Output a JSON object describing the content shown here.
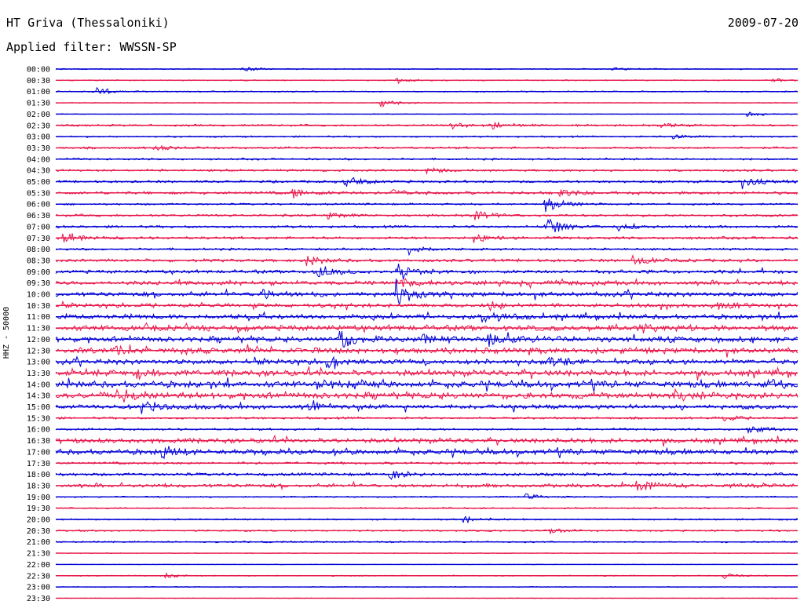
{
  "header": {
    "station": "HT Griva (Thessaloniki)",
    "date": "2009-07-20",
    "filter": "Applied filter: WWSSN-SP",
    "channel": "HHZ - 50000"
  },
  "colors": {
    "trace_a": "#0000d6",
    "trace_b": "#e8174b",
    "background": "#ffffff",
    "text": "#000000"
  },
  "chart_data": {
    "type": "line",
    "title": "HT Griva (Thessaloniki)",
    "subtitle": "Applied filter: WWSSN-SP",
    "date": "2009-07-20",
    "ylabel": "HHZ - 50000",
    "xlabel": "",
    "x_unit": "minutes within each 30-minute row",
    "xlim": [
      0,
      30
    ],
    "grid": false,
    "legend": "none",
    "row_color_cycle": [
      "#0000d6",
      "#e8174b"
    ],
    "rows": [
      {
        "time": "00:00",
        "noise": 0.8,
        "events": [
          {
            "t": 7.5,
            "a": 5
          },
          {
            "t": 22.5,
            "a": 2
          }
        ]
      },
      {
        "time": "00:30",
        "noise": 0.8,
        "events": [
          {
            "t": 13.8,
            "a": 4
          },
          {
            "t": 29.0,
            "a": 3
          }
        ]
      },
      {
        "time": "01:00",
        "noise": 1.0,
        "events": [
          {
            "t": 1.6,
            "a": 8
          }
        ]
      },
      {
        "time": "01:30",
        "noise": 0.6,
        "events": [
          {
            "t": 13.1,
            "a": 7
          }
        ]
      },
      {
        "time": "02:00",
        "noise": 0.5,
        "events": [
          {
            "t": 28.0,
            "a": 4
          }
        ]
      },
      {
        "time": "02:30",
        "noise": 1.5,
        "events": [
          {
            "t": 16.0,
            "a": 5
          },
          {
            "t": 17.7,
            "a": 6
          },
          {
            "t": 24.5,
            "a": 4
          }
        ]
      },
      {
        "time": "03:00",
        "noise": 1.2,
        "events": [
          {
            "t": 25.0,
            "a": 3
          }
        ]
      },
      {
        "time": "03:30",
        "noise": 1.6,
        "events": [
          {
            "t": 4.0,
            "a": 3
          }
        ]
      },
      {
        "time": "04:00",
        "noise": 1.4,
        "events": []
      },
      {
        "time": "04:30",
        "noise": 1.6,
        "events": [
          {
            "t": 15.0,
            "a": 5
          }
        ]
      },
      {
        "time": "05:00",
        "noise": 1.8,
        "events": [
          {
            "t": 11.7,
            "a": 12
          },
          {
            "t": 27.8,
            "a": 9
          }
        ]
      },
      {
        "time": "05:30",
        "noise": 2.2,
        "events": [
          {
            "t": 9.6,
            "a": 8
          },
          {
            "t": 13.6,
            "a": 8
          },
          {
            "t": 20.4,
            "a": 7
          }
        ]
      },
      {
        "time": "06:00",
        "noise": 1.4,
        "events": [
          {
            "t": 19.8,
            "a": 14
          }
        ]
      },
      {
        "time": "06:30",
        "noise": 1.8,
        "events": [
          {
            "t": 11.0,
            "a": 5
          },
          {
            "t": 17.0,
            "a": 10
          }
        ]
      },
      {
        "time": "07:00",
        "noise": 1.8,
        "events": [
          {
            "t": 19.8,
            "a": 16
          },
          {
            "t": 22.6,
            "a": 8
          }
        ]
      },
      {
        "time": "07:30",
        "noise": 2.0,
        "events": [
          {
            "t": 0.3,
            "a": 9
          },
          {
            "t": 16.9,
            "a": 9
          }
        ]
      },
      {
        "time": "08:00",
        "noise": 1.6,
        "events": [
          {
            "t": 14.3,
            "a": 10
          }
        ]
      },
      {
        "time": "08:30",
        "noise": 2.2,
        "events": [
          {
            "t": 10.1,
            "a": 9
          },
          {
            "t": 23.3,
            "a": 9
          }
        ]
      },
      {
        "time": "09:00",
        "noise": 2.6,
        "events": [
          {
            "t": 10.6,
            "a": 8
          },
          {
            "t": 13.9,
            "a": 9
          }
        ]
      },
      {
        "time": "09:30",
        "noise": 3.2,
        "events": [
          {
            "t": 14.0,
            "a": 6
          }
        ]
      },
      {
        "time": "10:00",
        "noise": 3.5,
        "events": [
          {
            "t": 8.3,
            "a": 6
          },
          {
            "t": 13.8,
            "a": 16
          }
        ]
      },
      {
        "time": "10:30",
        "noise": 3.0,
        "events": [
          {
            "t": 17.5,
            "a": 8
          },
          {
            "t": 26.8,
            "a": 7
          }
        ]
      },
      {
        "time": "11:00",
        "noise": 3.5,
        "events": [
          {
            "t": 17.2,
            "a": 12
          }
        ]
      },
      {
        "time": "11:30",
        "noise": 4.2,
        "events": [
          {
            "t": 23.7,
            "a": 7
          }
        ]
      },
      {
        "time": "12:00",
        "noise": 4.0,
        "events": [
          {
            "t": 11.5,
            "a": 12
          },
          {
            "t": 14.9,
            "a": 7
          },
          {
            "t": 17.5,
            "a": 8
          }
        ]
      },
      {
        "time": "12:30",
        "noise": 4.2,
        "events": [
          {
            "t": 2.3,
            "a": 5
          }
        ]
      },
      {
        "time": "13:00",
        "noise": 3.8,
        "events": [
          {
            "t": 11.0,
            "a": 6
          },
          {
            "t": 20.0,
            "a": 6
          }
        ]
      },
      {
        "time": "13:30",
        "noise": 4.5,
        "events": [
          {
            "t": 3.3,
            "a": 6
          }
        ]
      },
      {
        "time": "14:00",
        "noise": 4.8,
        "events": [
          {
            "t": 10.5,
            "a": 6
          },
          {
            "t": 28.7,
            "a": 6
          }
        ]
      },
      {
        "time": "14:30",
        "noise": 4.6,
        "events": [
          {
            "t": 2.8,
            "a": 9
          },
          {
            "t": 25.0,
            "a": 7
          }
        ]
      },
      {
        "time": "15:00",
        "noise": 3.4,
        "events": [
          {
            "t": 3.5,
            "a": 8
          },
          {
            "t": 10.2,
            "a": 10
          }
        ]
      },
      {
        "time": "15:30",
        "noise": 1.6,
        "events": [
          {
            "t": 27.0,
            "a": 5
          }
        ]
      },
      {
        "time": "16:00",
        "noise": 1.6,
        "events": [
          {
            "t": 28.0,
            "a": 7
          }
        ]
      },
      {
        "time": "16:30",
        "noise": 3.6,
        "events": []
      },
      {
        "time": "17:00",
        "noise": 4.0,
        "events": [
          {
            "t": 4.3,
            "a": 7
          }
        ]
      },
      {
        "time": "17:30",
        "noise": 1.8,
        "events": []
      },
      {
        "time": "18:00",
        "noise": 2.2,
        "events": [
          {
            "t": 13.5,
            "a": 8
          }
        ]
      },
      {
        "time": "18:30",
        "noise": 2.8,
        "events": [
          {
            "t": 23.5,
            "a": 8
          }
        ]
      },
      {
        "time": "19:00",
        "noise": 1.0,
        "events": [
          {
            "t": 19.0,
            "a": 4
          }
        ]
      },
      {
        "time": "19:30",
        "noise": 1.1,
        "events": []
      },
      {
        "time": "20:00",
        "noise": 1.2,
        "events": [
          {
            "t": 16.5,
            "a": 6
          }
        ]
      },
      {
        "time": "20:30",
        "noise": 1.3,
        "events": [
          {
            "t": 20.0,
            "a": 4
          }
        ]
      },
      {
        "time": "21:00",
        "noise": 1.2,
        "events": []
      },
      {
        "time": "21:30",
        "noise": 0.6,
        "events": []
      },
      {
        "time": "22:00",
        "noise": 0.4,
        "events": []
      },
      {
        "time": "22:30",
        "noise": 0.8,
        "events": [
          {
            "t": 4.4,
            "a": 4
          },
          {
            "t": 27.0,
            "a": 4
          }
        ]
      },
      {
        "time": "23:00",
        "noise": 0.6,
        "events": []
      },
      {
        "time": "23:30",
        "noise": 0.4,
        "events": []
      }
    ]
  }
}
